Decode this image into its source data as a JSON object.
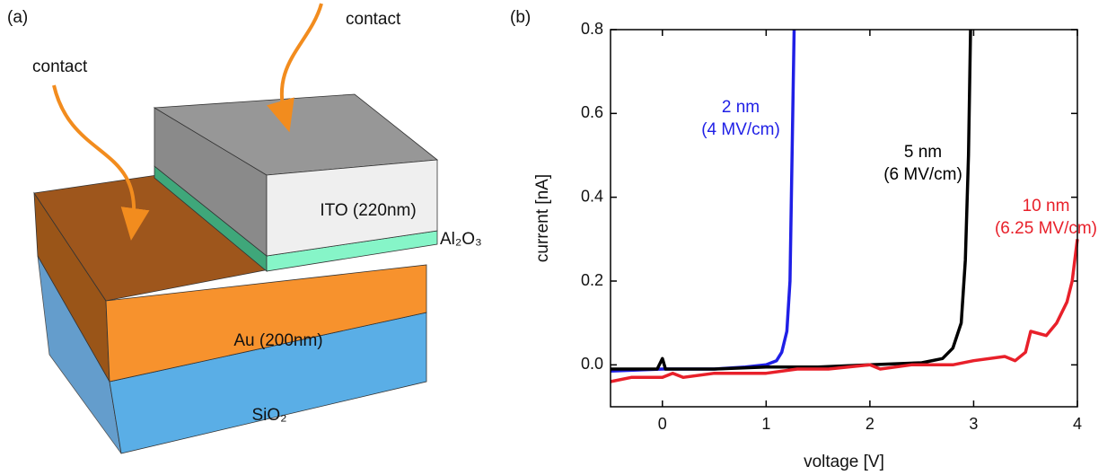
{
  "diagram": {
    "label": "(a)",
    "contacts": [
      "contact",
      "contact"
    ],
    "layers": [
      "ITO (220nm)",
      "Al₂O₃",
      "Au (200nm)",
      "SiO₂"
    ]
  },
  "chart_data": {
    "type": "line",
    "panel_label": "(b)",
    "x_label": "voltage [V]",
    "y_label": "current [nA]",
    "xlim": [
      -0.5,
      4
    ],
    "ylim": [
      -0.1,
      0.8
    ],
    "xticks": [
      0,
      1,
      2,
      3,
      4
    ],
    "yticks": [
      {
        "value": 0,
        "label": "0.0"
      },
      0.2,
      0.4,
      0.6,
      0.8
    ],
    "series": [
      {
        "name": "2 nm",
        "field": "(4 MV/cm)",
        "color": "#1f1fe6",
        "x": [
          -0.5,
          0,
          0.5,
          0.8,
          1.0,
          1.1,
          1.15,
          1.2,
          1.23,
          1.25,
          1.27
        ],
        "values": [
          -0.015,
          -0.01,
          -0.01,
          -0.005,
          0.0,
          0.01,
          0.03,
          0.08,
          0.2,
          0.5,
          0.8
        ]
      },
      {
        "name": "5 nm",
        "field": "(6 MV/cm)",
        "color": "#000000",
        "x": [
          -0.5,
          -0.05,
          0,
          0.03,
          0.5,
          1,
          1.5,
          2,
          2.5,
          2.7,
          2.8,
          2.88,
          2.92,
          2.95,
          2.97
        ],
        "values": [
          -0.01,
          -0.01,
          0.015,
          -0.01,
          -0.01,
          -0.005,
          -0.005,
          0.0,
          0.005,
          0.015,
          0.04,
          0.1,
          0.25,
          0.5,
          0.8
        ]
      },
      {
        "name": "10 nm",
        "field": "(6.25 MV/cm)",
        "color": "#e8202a",
        "x": [
          -0.5,
          -0.3,
          0,
          0.1,
          0.2,
          0.5,
          1,
          1.3,
          1.6,
          2,
          2.1,
          2.4,
          2.6,
          2.8,
          3.0,
          3.3,
          3.4,
          3.5,
          3.55,
          3.7,
          3.8,
          3.9,
          3.95,
          4.0
        ],
        "values": [
          -0.04,
          -0.03,
          -0.03,
          -0.02,
          -0.03,
          -0.02,
          -0.02,
          -0.01,
          -0.01,
          0.0,
          -0.01,
          0.0,
          0.0,
          0.0,
          0.01,
          0.02,
          0.01,
          0.03,
          0.08,
          0.07,
          0.1,
          0.15,
          0.2,
          0.3
        ]
      }
    ]
  }
}
